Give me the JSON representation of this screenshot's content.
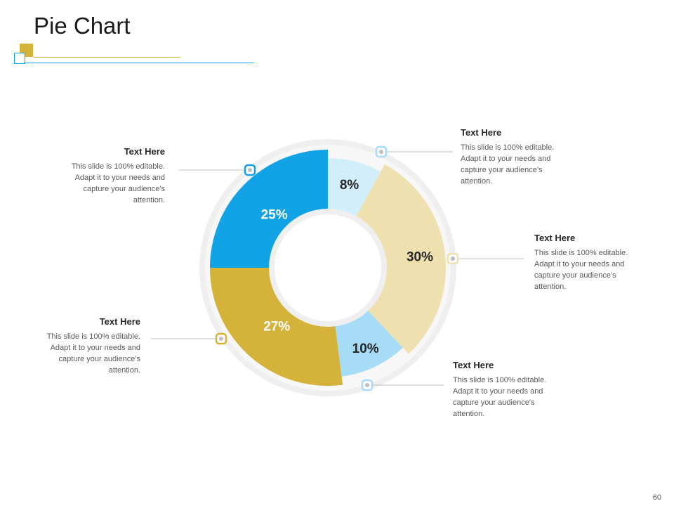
{
  "slide": {
    "title": "Pie Chart",
    "page_number": "60"
  },
  "colors": {
    "blue": "#12a3e6",
    "light_blue": "#a6dcf6",
    "pale_blue": "#d3eefb",
    "gold": "#d5b33a",
    "beige": "#efe0b0",
    "ring": "#efefef",
    "connector": "#bfbfbf"
  },
  "callouts": [
    {
      "heading": "Text Here",
      "body": "This slide is 100% editable. Adapt it to your needs and capture your audience's attention."
    },
    {
      "heading": "Text Here",
      "body": "This slide is 100% editable. Adapt it to your needs and capture your audience's attention."
    },
    {
      "heading": "Text Here",
      "body": "This slide is 100% editable. Adapt it to your needs and capture your audience's attention."
    },
    {
      "heading": "Text Here",
      "body": "This slide is 100% editable. Adapt it to your needs and capture your audience's attention."
    },
    {
      "heading": "Text Here",
      "body": "This slide is 100% editable. Adapt it to your needs and capture your audience's attention."
    }
  ],
  "chart_data": {
    "type": "pie",
    "donut": true,
    "slices": [
      {
        "label": "8%",
        "value": 8,
        "color": "#d3eefb",
        "label_color": "#262626"
      },
      {
        "label": "30%",
        "value": 30,
        "color": "#efe0b0",
        "label_color": "#262626"
      },
      {
        "label": "10%",
        "value": 10,
        "color": "#a6dcf6",
        "label_color": "#262626"
      },
      {
        "label": "27%",
        "value": 27,
        "color": "#d5b33a",
        "label_color": "#ffffff"
      },
      {
        "label": "25%",
        "value": 25,
        "color": "#12a3e6",
        "label_color": "#ffffff"
      }
    ]
  }
}
